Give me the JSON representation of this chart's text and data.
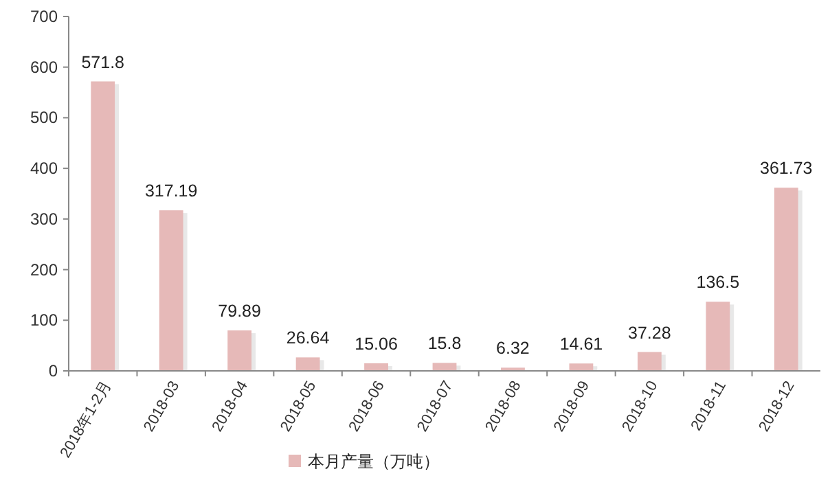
{
  "chart_data": {
    "type": "bar",
    "categories": [
      "2018年1-2月",
      "2018-03",
      "2018-04",
      "2018-05",
      "2018-06",
      "2018-07",
      "2018-08",
      "2018-09",
      "2018-10",
      "2018-11",
      "2018-12"
    ],
    "series": [
      {
        "name": "本月产量（万吨）",
        "color": "#e6b9b8",
        "values": [
          571.8,
          317.19,
          79.89,
          26.64,
          15.06,
          15.8,
          6.32,
          14.61,
          37.28,
          136.5,
          361.73
        ]
      }
    ],
    "ylim": [
      0,
      700
    ],
    "yticks": [
      0,
      100,
      200,
      300,
      400,
      500,
      600,
      700
    ],
    "data_labels": true,
    "legend": "bottom",
    "grid": false
  }
}
